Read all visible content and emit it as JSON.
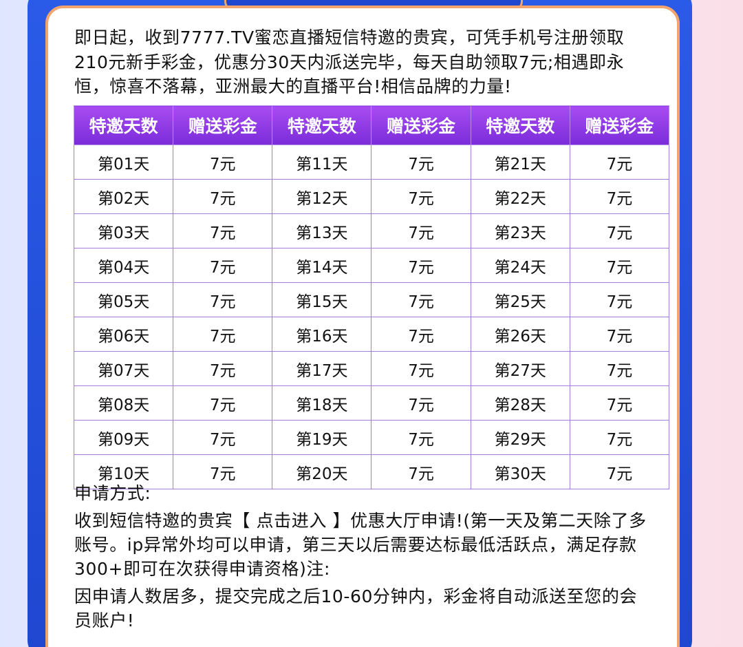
{
  "intro": {
    "lines": [
      "即日起，收到7777.TV蜜恋直播短信特邀的贵宾，可凭手机号注册领取",
      "210元新手彩金，优惠分30天内派送完毕，每天自助领取7元;相遇即永",
      "恒，惊喜不落幕，亚洲最大的直播平台!相信品牌的力量!"
    ]
  },
  "table": {
    "header": [
      "特邀天数",
      "赠送彩金",
      "特邀天数",
      "赠送彩金",
      "特邀天数",
      "赠送彩金"
    ],
    "rows": [
      [
        "第01天",
        "7元",
        "第11天",
        "7元",
        "第21天",
        "7元"
      ],
      [
        "第02天",
        "7元",
        "第12天",
        "7元",
        "第22天",
        "7元"
      ],
      [
        "第03天",
        "7元",
        "第13天",
        "7元",
        "第23天",
        "7元"
      ],
      [
        "第04天",
        "7元",
        "第14天",
        "7元",
        "第24天",
        "7元"
      ],
      [
        "第05天",
        "7元",
        "第15天",
        "7元",
        "第25天",
        "7元"
      ],
      [
        "第06天",
        "7元",
        "第16天",
        "7元",
        "第26天",
        "7元"
      ],
      [
        "第07天",
        "7元",
        "第17天",
        "7元",
        "第27天",
        "7元"
      ],
      [
        "第08天",
        "7元",
        "第18天",
        "7元",
        "第28天",
        "7元"
      ],
      [
        "第09天",
        "7元",
        "第19天",
        "7元",
        "第29天",
        "7元"
      ],
      [
        "第10天",
        "7元",
        "第20天",
        "7元",
        "第30天",
        "7元"
      ]
    ]
  },
  "apply": {
    "title": "申请方式:",
    "lines": [
      "收到短信特邀的贵宾【 点击进入 】优惠大厅申请!(第一天及第二天除了多",
      "账号。ip异常外均可以申请，第三天以后需要达标最低活跃点，满足存款",
      "300+即可在次获得申请资格)注:"
    ]
  },
  "note": {
    "lines": [
      "因申请人数居多，提交完成之后10-60分钟内，彩金将自动派送至您的会",
      "员账户!"
    ]
  }
}
